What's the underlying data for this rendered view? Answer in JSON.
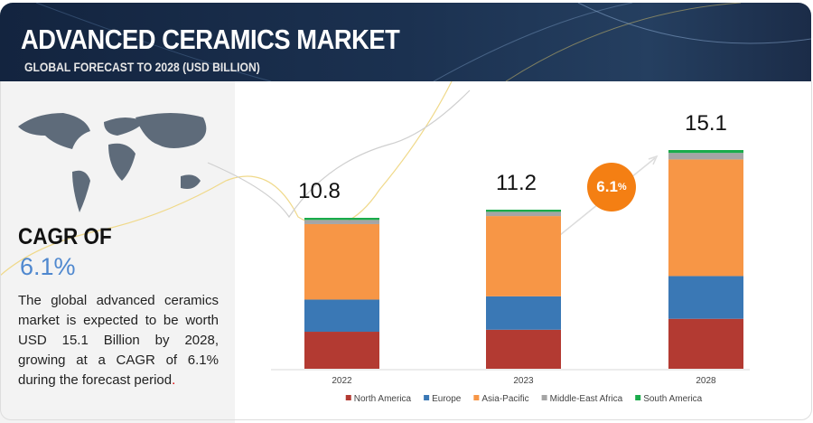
{
  "header": {
    "title": "ADVANCED CERAMICS MARKET",
    "subtitle": "GLOBAL FORECAST TO 2028 (USD BILLION)"
  },
  "summary": {
    "cagr_label": "CAGR OF",
    "cagr_value": "6.1%",
    "description": "The global advanced ceramics market is expected to be worth USD 15.1 Billion by 2028, growing at a CAGR of 6.1% during the forecast period",
    "description_end": "."
  },
  "badge": {
    "value": "6.1",
    "unit": "%"
  },
  "chart_data": {
    "type": "bar",
    "stacked": true,
    "categories": [
      "2022",
      "2023",
      "2028"
    ],
    "totals": [
      "10.8",
      "11.2",
      "15.1"
    ],
    "series": [
      {
        "name": "North America",
        "color": "#b33a32",
        "values": [
          2.65,
          2.75,
          3.45
        ]
      },
      {
        "name": "Europe",
        "color": "#3a78b5",
        "values": [
          2.3,
          2.35,
          2.95
        ]
      },
      {
        "name": "Asia-Pacific",
        "color": "#f79646",
        "values": [
          5.4,
          5.65,
          8.05
        ]
      },
      {
        "name": "Middle-East Africa",
        "color": "#a5a5a5",
        "values": [
          0.3,
          0.3,
          0.45
        ]
      },
      {
        "name": "South America",
        "color": "#1aab4b",
        "values": [
          0.15,
          0.15,
          0.2
        ]
      }
    ],
    "legend": "bottom",
    "grid": false
  }
}
